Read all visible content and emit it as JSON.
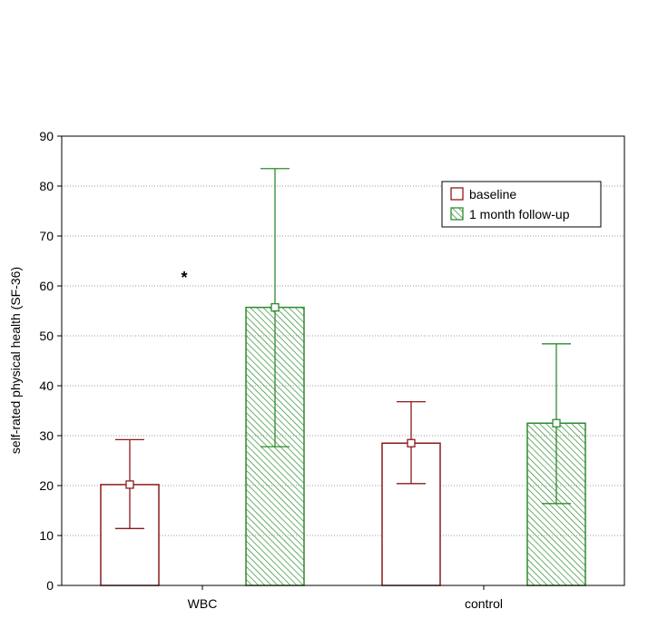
{
  "chart_data": {
    "type": "bar",
    "ylabel": "self-rated physical health (SF-36)",
    "xlabel": "",
    "ylim": [
      0,
      90
    ],
    "yticks": [
      0,
      10,
      20,
      30,
      40,
      50,
      60,
      70,
      80,
      90
    ],
    "grid": "horizontal-dotted",
    "legend_position": "top-right",
    "categories": [
      "WBC",
      "control"
    ],
    "series": [
      {
        "name": "baseline",
        "color": "#8b1a1a",
        "fill": "none",
        "values": [
          20.2,
          28.5
        ],
        "error_low": [
          11.4,
          20.4
        ],
        "error_high": [
          29.2,
          36.8
        ]
      },
      {
        "name": "1 month follow-up",
        "color": "#2e8b2e",
        "fill": "hatched",
        "values": [
          55.7,
          32.5
        ],
        "error_low": [
          27.8,
          16.4
        ],
        "error_high": [
          83.5,
          48.4
        ]
      }
    ],
    "annotations": [
      {
        "text": "*",
        "x": "WBC",
        "y": 62
      }
    ]
  }
}
